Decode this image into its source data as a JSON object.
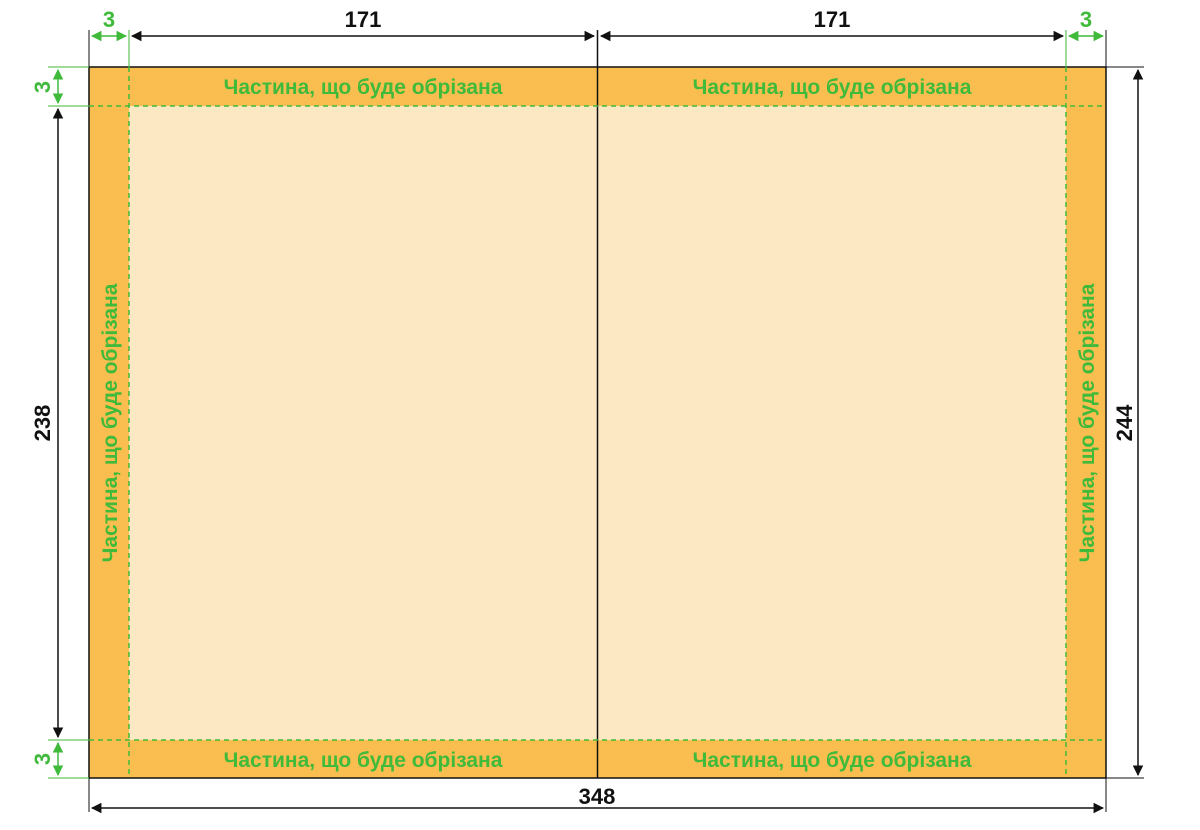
{
  "colors": {
    "bleed": "#f9be4f",
    "page": "#fde8c4",
    "trim_line": "#3fba3a",
    "dimension_line": "#111111",
    "dimension_accent": "#3fba3a"
  },
  "dimensions": {
    "left_bleed": "3",
    "left_page_width": "171",
    "right_page_width": "171",
    "right_bleed": "3",
    "top_bleed": "3",
    "trim_height": "238",
    "bottom_bleed": "3",
    "total_height": "244",
    "total_width": "348"
  },
  "labels": {
    "top_left": "Частина, що буде обрізана",
    "top_right": "Частина, що буде обрізана",
    "bottom_left": "Частина, що буде обрізана",
    "bottom_right": "Частина, що буде обрізана",
    "left_side": "Частина, що буде обрізана",
    "right_side": "Частина, що буде обрізана"
  }
}
